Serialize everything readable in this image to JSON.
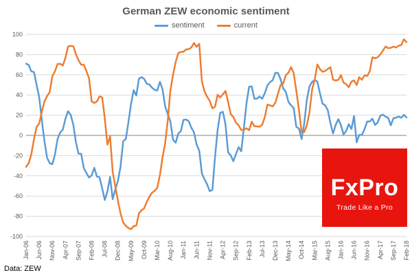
{
  "footer": {
    "source": "Data: ZEW"
  },
  "logo": {
    "name": "FxPro",
    "tagline": "Trade Like a Pro",
    "bg": "#e8150f"
  },
  "chart_data": {
    "type": "line",
    "title": "German ZEW economic sentiment",
    "xlabel": "",
    "ylabel": "",
    "ylim": [
      -100,
      100
    ],
    "ytick_step": 20,
    "xtick_every": 5,
    "grid": true,
    "legend_position": "top",
    "grid_color": "#d9d9d9",
    "zero_line_color": "#808080",
    "x": [
      "Jan-06",
      "Feb-06",
      "Mar-06",
      "Apr-06",
      "May-06",
      "Jun-06",
      "Jul-06",
      "Aug-06",
      "Sep-06",
      "Oct-06",
      "Nov-06",
      "Dec-06",
      "Jan-07",
      "Feb-07",
      "Mar-07",
      "Apr-07",
      "May-07",
      "Jun-07",
      "Jul-07",
      "Aug-07",
      "Sep-07",
      "Oct-07",
      "Nov-07",
      "Dec-07",
      "Jan-08",
      "Feb-08",
      "Mar-08",
      "Apr-08",
      "May-08",
      "Jun-08",
      "Jul-08",
      "Aug-08",
      "Sep-08",
      "Oct-08",
      "Nov-08",
      "Dec-08",
      "Jan-09",
      "Feb-09",
      "Mar-09",
      "Apr-09",
      "May-09",
      "Jun-09",
      "Jul-09",
      "Aug-09",
      "Sep-09",
      "Oct-09",
      "Nov-09",
      "Dec-09",
      "Jan-10",
      "Feb-10",
      "Mar-10",
      "Apr-10",
      "May-10",
      "Jun-10",
      "Jul-10",
      "Aug-10",
      "Sep-10",
      "Oct-10",
      "Nov-10",
      "Dec-10",
      "Jan-11",
      "Feb-11",
      "Mar-11",
      "Apr-11",
      "May-11",
      "Jun-11",
      "Jul-11",
      "Aug-11",
      "Sep-11",
      "Oct-11",
      "Nov-11",
      "Dec-11",
      "Jan-12",
      "Feb-12",
      "Mar-12",
      "Apr-12",
      "May-12",
      "Jun-12",
      "Jul-12",
      "Aug-12",
      "Sep-12",
      "Oct-12",
      "Nov-12",
      "Dec-12",
      "Jan-13",
      "Feb-13",
      "Mar-13",
      "Apr-13",
      "May-13",
      "Jun-13",
      "Jul-13",
      "Aug-13",
      "Sep-13",
      "Oct-13",
      "Nov-13",
      "Dec-13",
      "Jan-14",
      "Feb-14",
      "Mar-14",
      "Apr-14",
      "May-14",
      "Jun-14",
      "Jul-14",
      "Aug-14",
      "Sep-14",
      "Oct-14",
      "Nov-14",
      "Dec-14",
      "Jan-15",
      "Feb-15",
      "Mar-15",
      "Apr-15",
      "May-15",
      "Jun-15",
      "Jul-15",
      "Aug-15",
      "Sep-15",
      "Oct-15",
      "Nov-15",
      "Dec-15",
      "Jan-16",
      "Feb-16",
      "Mar-16",
      "Apr-16",
      "May-16",
      "Jun-16",
      "Jul-16",
      "Aug-16",
      "Sep-16",
      "Oct-16",
      "Nov-16",
      "Dec-16",
      "Jan-17",
      "Feb-17",
      "Mar-17",
      "Apr-17",
      "May-17",
      "Jun-17",
      "Jul-17",
      "Aug-17",
      "Sep-17",
      "Oct-17",
      "Nov-17",
      "Dec-17",
      "Jan-18",
      "Feb-18"
    ],
    "series": [
      {
        "name": "sentiment",
        "color": "#5B9BD5",
        "values": [
          71.0,
          69.8,
          63.4,
          62.7,
          50.0,
          37.8,
          15.1,
          -5.6,
          -22.2,
          -27.4,
          -28.5,
          -19.0,
          -3.6,
          2.9,
          5.8,
          16.5,
          24.0,
          20.3,
          10.4,
          -6.9,
          -18.1,
          -18.1,
          -32.5,
          -37.2,
          -41.6,
          -39.5,
          -32.0,
          -40.7,
          -41.4,
          -52.4,
          -63.9,
          -55.5,
          -41.1,
          -63.0,
          -53.5,
          -45.2,
          -31.0,
          -5.8,
          -3.5,
          13.0,
          31.1,
          44.8,
          39.5,
          56.1,
          57.7,
          56.0,
          51.1,
          50.4,
          47.2,
          45.1,
          44.5,
          53.0,
          45.8,
          28.7,
          21.2,
          14.0,
          -4.3,
          -7.2,
          1.8,
          4.3,
          15.4,
          15.7,
          14.1,
          7.6,
          3.1,
          -9.0,
          -15.1,
          -37.6,
          -43.3,
          -48.3,
          -55.2,
          -53.8,
          -21.6,
          5.4,
          22.3,
          23.4,
          10.8,
          -16.9,
          -19.6,
          -25.5,
          -18.2,
          -11.5,
          -15.7,
          6.9,
          31.5,
          48.2,
          48.5,
          36.3,
          36.4,
          38.5,
          36.3,
          42.0,
          49.6,
          52.8,
          54.6,
          62.0,
          61.7,
          55.7,
          46.6,
          43.2,
          33.1,
          29.8,
          27.1,
          8.6,
          6.9,
          -3.6,
          11.5,
          34.9,
          48.4,
          53.0,
          54.8,
          53.3,
          41.9,
          31.5,
          29.7,
          25.0,
          12.1,
          1.9,
          10.4,
          16.1,
          10.2,
          1.0,
          4.3,
          11.2,
          6.4,
          19.2,
          -6.8,
          0.5,
          0.5,
          6.2,
          13.8,
          13.8,
          16.6,
          10.4,
          12.8,
          19.5,
          20.6,
          18.6,
          17.5,
          10.0,
          17.0,
          17.6,
          18.7,
          17.4,
          20.4,
          17.8
        ]
      },
      {
        "name": "current",
        "color": "#ED7D31",
        "values": [
          -31.1,
          -27.5,
          -18.7,
          -3.6,
          8.4,
          11.9,
          23.3,
          33.6,
          38.9,
          42.9,
          58.6,
          63.5,
          70.6,
          70.9,
          69.2,
          76.9,
          88.0,
          88.7,
          88.2,
          80.2,
          74.4,
          70.0,
          70.0,
          63.5,
          56.6,
          33.7,
          32.1,
          33.7,
          38.6,
          37.6,
          17.0,
          -9.2,
          -1.0,
          -35.9,
          -50.4,
          -64.5,
          -77.1,
          -86.2,
          -89.4,
          -91.6,
          -92.8,
          -89.7,
          -89.3,
          -77.2,
          -74.0,
          -72.2,
          -65.6,
          -60.6,
          -56.6,
          -54.8,
          -51.9,
          -39.2,
          -21.6,
          -7.9,
          14.6,
          44.3,
          59.9,
          72.6,
          81.5,
          82.6,
          82.8,
          85.2,
          85.4,
          87.1,
          91.5,
          87.6,
          90.6,
          53.5,
          43.6,
          38.4,
          34.2,
          26.8,
          28.4,
          40.3,
          37.6,
          40.7,
          44.1,
          33.2,
          21.1,
          18.2,
          12.6,
          10.0,
          5.4,
          5.7,
          7.1,
          5.2,
          13.6,
          9.2,
          8.9,
          8.6,
          10.6,
          18.3,
          30.6,
          29.7,
          28.7,
          32.4,
          41.2,
          50.0,
          51.3,
          59.5,
          62.1,
          67.7,
          61.8,
          44.3,
          25.4,
          3.2,
          3.3,
          10.0,
          22.4,
          45.5,
          55.1,
          70.2,
          65.7,
          62.9,
          63.9,
          65.7,
          67.5,
          55.2,
          54.4,
          55.0,
          59.7,
          52.3,
          50.7,
          47.7,
          53.1,
          54.5,
          49.8,
          57.6,
          55.1,
          59.5,
          58.8,
          63.5,
          77.3,
          76.4,
          77.3,
          80.1,
          83.9,
          88.0,
          86.4,
          86.7,
          87.9,
          87.0,
          88.8,
          89.3,
          95.2,
          92.3
        ]
      }
    ]
  }
}
